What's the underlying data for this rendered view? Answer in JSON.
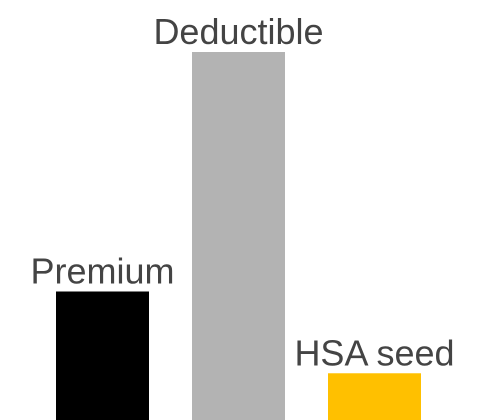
{
  "chart_data": {
    "type": "bar",
    "categories": [
      "Premium",
      "Deductible",
      "HSA seed"
    ],
    "values": [
      2.2,
      6.3,
      0.8
    ],
    "ylim": [
      0,
      6.3
    ],
    "grid": false,
    "legend": "none",
    "show_axes": false,
    "colors": [
      "#000000",
      "#b3b3b3",
      "#ffc000"
    ],
    "label_color": "#444444"
  }
}
